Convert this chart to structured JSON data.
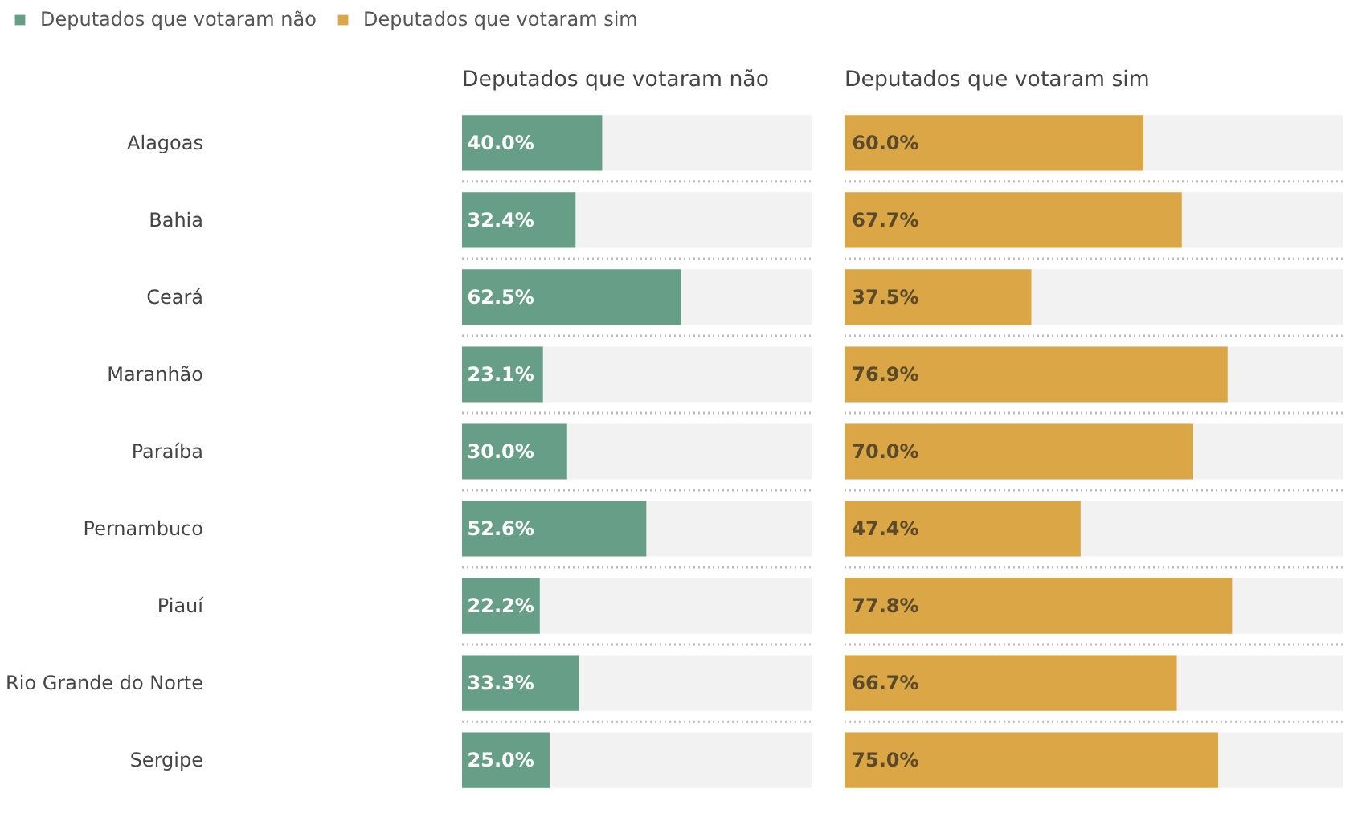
{
  "chart_data": [
    {
      "type": "bar",
      "orientation": "horizontal",
      "title": "Deputados que votaram não",
      "categories": [
        "Alagoas",
        "Bahia",
        "Ceará",
        "Maranhão",
        "Paraíba",
        "Pernambuco",
        "Piauí",
        "Rio Grande do Norte",
        "Sergipe"
      ],
      "xlim": [
        0,
        100
      ],
      "tick_labels": "y",
      "grid": "y",
      "legend": "top left",
      "series": [
        {
          "name": "Deputados que votaram não",
          "color": "#669e87",
          "values": [
            40.0,
            32.4,
            62.5,
            23.1,
            30.0,
            52.6,
            22.2,
            33.3,
            25.0
          ],
          "value_labels": [
            "40.0%",
            "32.4%",
            "62.5%",
            "23.1%",
            "30.0%",
            "52.6%",
            "22.2%",
            "33.3%",
            "25.0%"
          ]
        }
      ]
    },
    {
      "type": "bar",
      "orientation": "horizontal",
      "title": "Deputados que votaram sim",
      "categories": [
        null,
        null,
        null,
        null,
        null,
        null,
        null,
        null,
        null
      ],
      "xlim": [
        0,
        100
      ],
      "tick_labels": false,
      "grid": "y",
      "legend": "top left",
      "series": [
        {
          "name": "Deputados que votaram sim",
          "color": "#dba645",
          "values": [
            60.0,
            67.7,
            37.5,
            76.9,
            70.0,
            47.4,
            77.8,
            66.7,
            75.0
          ],
          "value_labels": [
            "60.0%",
            "67.7%",
            "37.5%",
            "76.9%",
            "70.0%",
            "47.4%",
            "77.8%",
            "66.7%",
            "75.0%"
          ]
        }
      ]
    }
  ]
}
